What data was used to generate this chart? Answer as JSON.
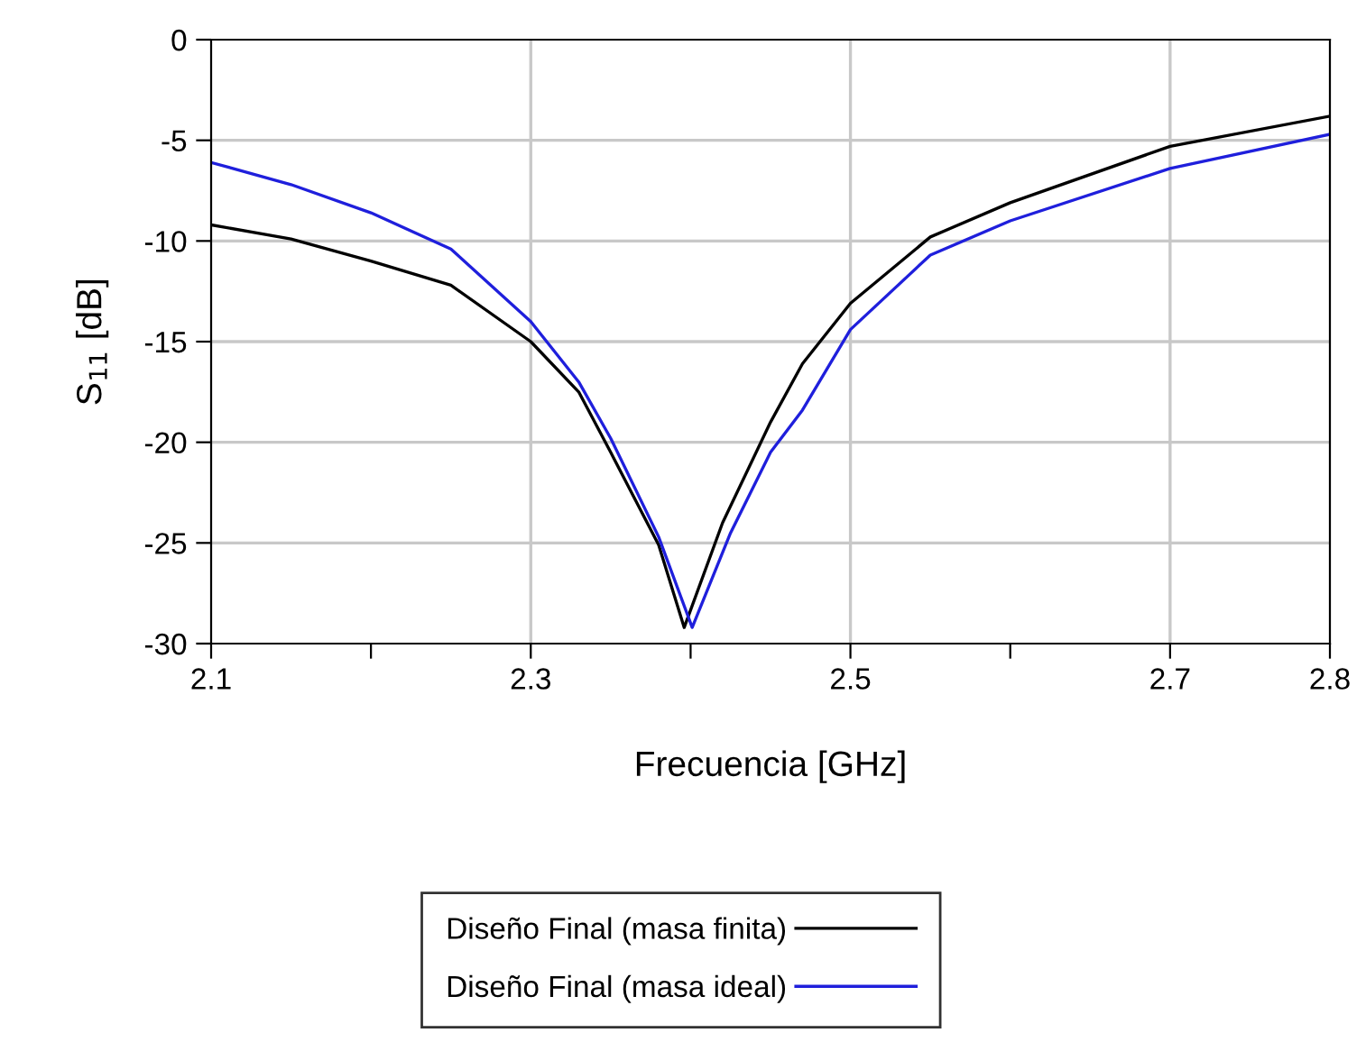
{
  "chart_data": {
    "type": "line",
    "xlabel": "Frecuencia [GHz]",
    "ylabel": "S$_{11}$ [dB]",
    "xlim": [
      2.1,
      2.8
    ],
    "xticks": [
      2.1,
      {
        "value": 2.2,
        "label": null
      },
      2.3,
      {
        "value": 2.4,
        "label": null
      },
      2.5,
      {
        "value": 2.6,
        "label": null
      },
      2.7,
      2.8
    ],
    "ylim": [
      -30,
      0
    ],
    "yticks": [
      0,
      -5,
      -10,
      -15,
      -20,
      -25,
      -30
    ],
    "grid": true,
    "legend": "bottom",
    "line_style": "solid",
    "series": [
      {
        "name": "Diseño Final (masa finita)",
        "color": "#000000",
        "x": [
          2.1,
          2.15,
          2.2,
          2.25,
          2.3,
          2.33,
          2.35,
          2.38,
          2.396,
          2.42,
          2.45,
          2.47,
          2.5,
          2.55,
          2.6,
          2.7,
          2.8
        ],
        "values": [
          -9.2,
          -9.9,
          -11.0,
          -12.2,
          -15.0,
          -17.5,
          -20.5,
          -25.1,
          -29.2,
          -24.0,
          -19.0,
          -16.1,
          -13.1,
          -9.8,
          -8.1,
          -5.3,
          -3.8
        ]
      },
      {
        "name": "Diseño Final (masa ideal)",
        "color": "#1f1fdc",
        "x": [
          2.1,
          2.15,
          2.2,
          2.25,
          2.3,
          2.33,
          2.35,
          2.38,
          2.401,
          2.425,
          2.45,
          2.47,
          2.5,
          2.55,
          2.6,
          2.7,
          2.8
        ],
        "values": [
          -6.1,
          -7.2,
          -8.6,
          -10.4,
          -14.0,
          -17.0,
          -19.8,
          -24.7,
          -29.2,
          -24.5,
          -20.5,
          -18.4,
          -14.4,
          -10.7,
          -9.0,
          -6.4,
          -4.7
        ]
      }
    ]
  }
}
